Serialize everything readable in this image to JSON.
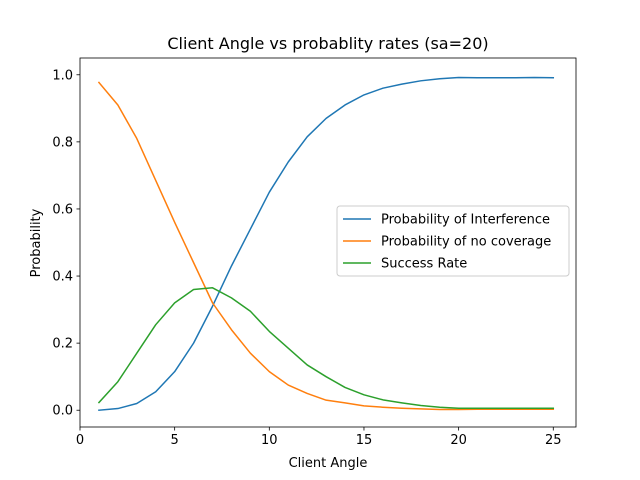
{
  "chart_data": {
    "type": "line",
    "title": "Client Angle vs probablity rates (sa=20)",
    "xlabel": "Client Angle",
    "ylabel": "Probability",
    "xlim": [
      0,
      26.2
    ],
    "ylim": [
      -0.05,
      1.05
    ],
    "xticks": [
      0,
      5,
      10,
      15,
      20,
      25
    ],
    "yticks": [
      0.0,
      0.2,
      0.4,
      0.6,
      0.8,
      1.0
    ],
    "xtick_labels": [
      "0",
      "5",
      "10",
      "15",
      "20",
      "25"
    ],
    "ytick_labels": [
      "0.0",
      "0.2",
      "0.4",
      "0.6",
      "0.8",
      "1.0"
    ],
    "grid": false,
    "legend_position": "center-right",
    "x": [
      1,
      2,
      3,
      4,
      5,
      6,
      7,
      8,
      9,
      10,
      11,
      12,
      13,
      14,
      15,
      16,
      17,
      18,
      19,
      20,
      21,
      22,
      23,
      24,
      25
    ],
    "series": [
      {
        "name": "Probability of Interference",
        "color": "#1f77b4",
        "values": [
          0.0,
          0.005,
          0.02,
          0.055,
          0.115,
          0.2,
          0.31,
          0.43,
          0.54,
          0.65,
          0.74,
          0.815,
          0.87,
          0.91,
          0.94,
          0.96,
          0.972,
          0.982,
          0.988,
          0.992,
          0.991,
          0.991,
          0.991,
          0.992,
          0.991
        ]
      },
      {
        "name": "Probability of no coverage",
        "color": "#ff7f0e",
        "values": [
          0.977,
          0.91,
          0.81,
          0.685,
          0.56,
          0.44,
          0.32,
          0.24,
          0.17,
          0.115,
          0.075,
          0.05,
          0.03,
          0.022,
          0.013,
          0.009,
          0.006,
          0.004,
          0.002,
          0.002,
          0.003,
          0.003,
          0.003,
          0.003,
          0.003
        ]
      },
      {
        "name": "Success Rate",
        "color": "#2ca02c",
        "values": [
          0.023,
          0.085,
          0.17,
          0.255,
          0.32,
          0.36,
          0.365,
          0.335,
          0.295,
          0.235,
          0.185,
          0.135,
          0.1,
          0.068,
          0.046,
          0.031,
          0.022,
          0.014,
          0.009,
          0.006,
          0.006,
          0.006,
          0.006,
          0.006,
          0.006
        ]
      }
    ]
  }
}
